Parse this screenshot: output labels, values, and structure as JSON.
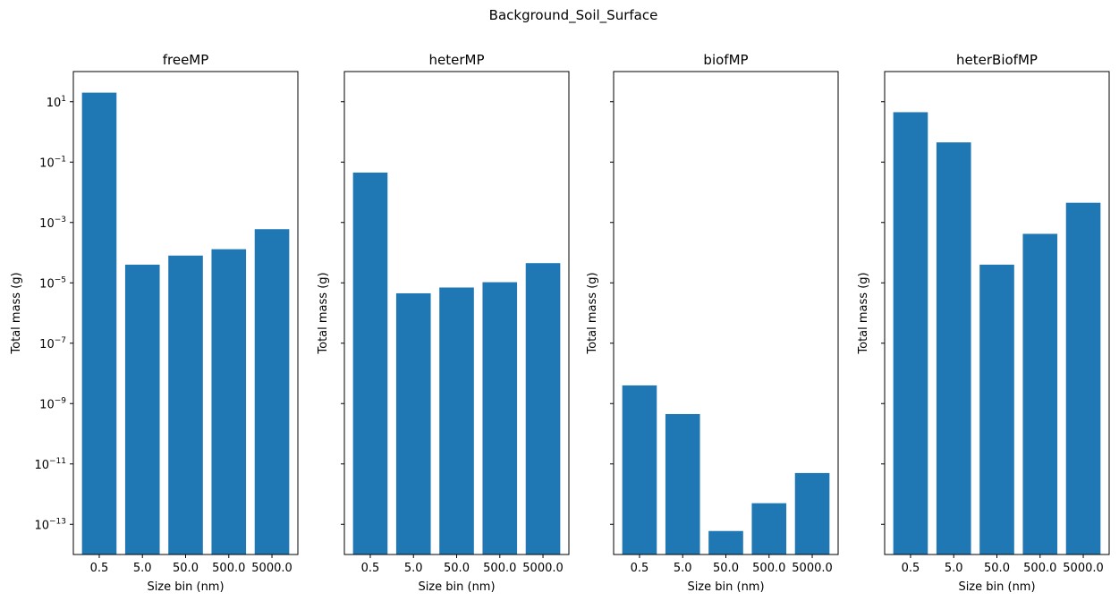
{
  "figure": {
    "suptitle": "Background_Soil_Surface"
  },
  "chart_data": [
    {
      "type": "bar",
      "title": "freeMP",
      "xlabel": "Size bin (nm)",
      "ylabel": "Total mass (g)",
      "yscale": "log",
      "ylim": [
        1e-14,
        100
      ],
      "categories": [
        "0.5",
        "5.0",
        "50.0",
        "500.0",
        "5000.0"
      ],
      "values": [
        20,
        4e-05,
        8e-05,
        0.00013,
        0.0006
      ],
      "ytick_labels": [
        "10^1",
        "10^-1",
        "10^-3",
        "10^-5",
        "10^-7",
        "10^-9",
        "10^-11",
        "10^-13"
      ],
      "color": "#1f77b4"
    },
    {
      "type": "bar",
      "title": "heterMP",
      "xlabel": "Size bin (nm)",
      "ylabel": "Total mass (g)",
      "yscale": "log",
      "ylim": [
        1e-14,
        100
      ],
      "categories": [
        "0.5",
        "5.0",
        "50.0",
        "500.0",
        "5000.0"
      ],
      "values": [
        0.045,
        4.5e-06,
        7e-06,
        1.05e-05,
        4.5e-05
      ],
      "color": "#1f77b4"
    },
    {
      "type": "bar",
      "title": "biofMP",
      "xlabel": "Size bin (nm)",
      "ylabel": "Total mass (g)",
      "yscale": "log",
      "ylim": [
        1e-14,
        100
      ],
      "categories": [
        "0.5",
        "5.0",
        "50.0",
        "500.0",
        "5000.0"
      ],
      "values": [
        4e-09,
        4.5e-10,
        6e-14,
        5e-13,
        5e-12
      ],
      "color": "#1f77b4"
    },
    {
      "type": "bar",
      "title": "heterBiofMP",
      "xlabel": "Size bin (nm)",
      "ylabel": "Total mass (g)",
      "yscale": "log",
      "ylim": [
        1e-14,
        100
      ],
      "categories": [
        "0.5",
        "5.0",
        "50.0",
        "500.0",
        "5000.0"
      ],
      "values": [
        4.5,
        0.45,
        4e-05,
        0.00042,
        0.0045
      ],
      "color": "#1f77b4"
    }
  ]
}
